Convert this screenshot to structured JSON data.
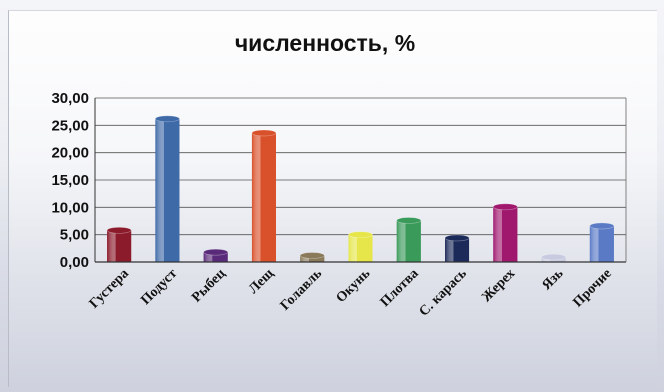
{
  "chart_data": {
    "type": "bar",
    "title": "численность, %",
    "xlabel": "",
    "ylabel": "",
    "ylim": [
      0,
      30
    ],
    "yticks": [
      "0,00",
      "5,00",
      "10,00",
      "15,00",
      "20,00",
      "25,00",
      "30,00"
    ],
    "grid": true,
    "legend": "none",
    "categories": [
      "Густера",
      "Подуст",
      "Рыбец",
      "Лещ",
      "Голавль",
      "Окунь",
      "Плотва",
      "С. карась",
      "Жерех",
      "Язь",
      "Прочие"
    ],
    "values": [
      5.8,
      26.2,
      1.8,
      23.6,
      1.2,
      5.0,
      7.6,
      4.4,
      10.1,
      0.9,
      6.6
    ],
    "colors": [
      "#8b1a2b",
      "#3f6aa8",
      "#5a2a7a",
      "#d9512b",
      "#8a7a5a",
      "#e6e64a",
      "#3a9a5a",
      "#1c2a5a",
      "#a0186e",
      "#c8cbe0",
      "#5a7ac6"
    ]
  }
}
